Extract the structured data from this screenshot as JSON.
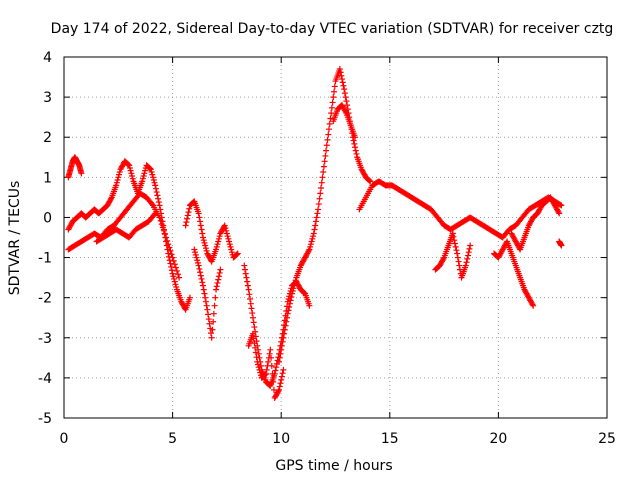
{
  "chart_data": {
    "type": "scatter",
    "title": "Day 174 of 2022, Sidereal Day-to-day VTEC variation (SDTVAR) for receiver cztg",
    "xlabel": "GPS time / hours",
    "ylabel": "SDTVAR / TECUs",
    "xlim": [
      0,
      25
    ],
    "ylim": [
      -5,
      4
    ],
    "xticks": [
      0,
      5,
      10,
      15,
      20,
      25
    ],
    "yticks": [
      -5,
      -4,
      -3,
      -2,
      -1,
      0,
      1,
      2,
      3,
      4
    ],
    "grid": true,
    "marker": "+",
    "series": [
      {
        "name": "SDTVAR",
        "color": "#ff0000",
        "segments": [
          {
            "x": [
              0.2,
              0.3,
              0.4,
              0.5,
              0.6,
              0.7,
              0.8
            ],
            "y": [
              1.0,
              1.2,
              1.4,
              1.5,
              1.4,
              1.3,
              1.1
            ]
          },
          {
            "x": [
              0.2,
              0.4,
              0.6,
              0.8,
              1.0,
              1.2,
              1.4,
              1.6,
              1.8,
              2.0,
              2.2,
              2.4,
              2.6,
              2.8,
              3.0,
              3.2,
              3.4,
              3.6,
              3.8,
              4.0,
              4.2,
              4.4,
              4.6,
              4.8,
              5.0,
              5.2,
              5.4,
              5.6,
              5.8
            ],
            "y": [
              -0.3,
              -0.1,
              0.0,
              0.1,
              0.0,
              0.1,
              0.2,
              0.1,
              0.2,
              0.3,
              0.5,
              0.8,
              1.2,
              1.4,
              1.3,
              0.9,
              0.6,
              0.9,
              1.3,
              1.2,
              0.8,
              0.3,
              -0.3,
              -0.9,
              -1.4,
              -1.8,
              -2.1,
              -2.3,
              -2.0
            ]
          },
          {
            "x": [
              0.2,
              0.5,
              0.8,
              1.1,
              1.4,
              1.7,
              2.0,
              2.3,
              2.6,
              2.9,
              3.2,
              3.5,
              3.8,
              4.1,
              4.4,
              4.7,
              5.0,
              5.3
            ],
            "y": [
              -0.8,
              -0.7,
              -0.6,
              -0.5,
              -0.4,
              -0.5,
              -0.3,
              -0.2,
              0.0,
              0.2,
              0.4,
              0.6,
              0.5,
              0.3,
              0.0,
              -0.5,
              -1.0,
              -1.5
            ]
          },
          {
            "x": [
              1.5,
              1.8,
              2.1,
              2.4,
              2.7,
              3.0,
              3.3,
              3.6,
              3.9,
              4.2
            ],
            "y": [
              -0.6,
              -0.5,
              -0.4,
              -0.3,
              -0.4,
              -0.5,
              -0.3,
              -0.2,
              -0.1,
              0.1
            ]
          },
          {
            "x": [
              5.6,
              5.8,
              6.0,
              6.2,
              6.4,
              6.6,
              6.8,
              7.0,
              7.2,
              7.4,
              7.6,
              7.8,
              8.0
            ],
            "y": [
              -0.2,
              0.3,
              0.4,
              0.1,
              -0.5,
              -0.9,
              -1.1,
              -0.8,
              -0.4,
              -0.2,
              -0.6,
              -1.0,
              -0.9
            ]
          },
          {
            "x": [
              6.0,
              6.2,
              6.4,
              6.6,
              6.8,
              7.0,
              7.2
            ],
            "y": [
              -0.8,
              -1.2,
              -1.7,
              -2.3,
              -3.0,
              -1.8,
              -1.3
            ]
          },
          {
            "x": [
              8.3,
              8.5,
              8.7,
              8.9,
              9.1,
              9.3,
              9.5,
              9.7,
              9.9,
              10.1,
              10.3,
              10.5,
              10.7,
              10.9,
              11.1,
              11.3
            ],
            "y": [
              -1.2,
              -1.8,
              -2.5,
              -3.2,
              -3.8,
              -4.1,
              -4.2,
              -3.9,
              -3.4,
              -2.8,
              -2.1,
              -1.7,
              -1.6,
              -1.8,
              -1.9,
              -2.2
            ]
          },
          {
            "x": [
              8.5,
              8.7,
              8.9,
              9.1,
              9.3,
              9.5,
              9.7,
              9.9,
              10.1
            ],
            "y": [
              -3.2,
              -2.9,
              -3.6,
              -4.0,
              -3.9,
              -3.3,
              -4.5,
              -4.3,
              -3.8
            ]
          },
          {
            "x": [
              9.9,
              10.1,
              10.3,
              10.5,
              10.7,
              10.9,
              11.1,
              11.3,
              11.5,
              11.7,
              11.9,
              12.1,
              12.3,
              12.5,
              12.7,
              12.9,
              13.1,
              13.3,
              13.5,
              13.7,
              13.9,
              14.1
            ],
            "y": [
              -3.6,
              -3.0,
              -2.4,
              -1.9,
              -1.5,
              -1.2,
              -1.0,
              -0.8,
              -0.4,
              0.2,
              1.0,
              1.8,
              2.6,
              3.4,
              3.7,
              3.2,
              2.6,
              2.0,
              1.5,
              1.2,
              1.0,
              0.9
            ]
          },
          {
            "x": [
              12.4,
              12.6,
              12.8,
              13.0,
              13.2,
              13.4
            ],
            "y": [
              2.4,
              2.7,
              2.8,
              2.6,
              2.3,
              2.0
            ]
          },
          {
            "x": [
              13.6,
              13.9,
              14.2,
              14.5,
              14.8,
              15.1,
              15.4,
              15.7,
              16.0,
              16.3,
              16.6,
              16.9,
              17.2,
              17.5,
              17.8,
              18.1,
              18.4,
              18.7,
              19.0,
              19.3,
              19.6,
              19.9,
              20.2,
              20.5,
              20.8,
              21.1,
              21.4,
              21.7,
              22.0,
              22.3,
              22.6,
              22.9
            ],
            "y": [
              0.2,
              0.5,
              0.8,
              0.9,
              0.8,
              0.8,
              0.7,
              0.6,
              0.5,
              0.4,
              0.3,
              0.2,
              0.0,
              -0.2,
              -0.3,
              -0.2,
              -0.1,
              0.0,
              -0.1,
              -0.2,
              -0.3,
              -0.4,
              -0.5,
              -0.3,
              -0.2,
              0.0,
              0.2,
              0.3,
              0.4,
              0.5,
              0.4,
              0.3
            ]
          },
          {
            "x": [
              17.1,
              17.3,
              17.5,
              17.7,
              17.9
            ],
            "y": [
              -1.3,
              -1.2,
              -1.0,
              -0.7,
              -0.4
            ]
          },
          {
            "x": [
              17.9,
              18.1,
              18.3,
              18.5,
              18.7
            ],
            "y": [
              -0.4,
              -0.9,
              -1.5,
              -1.2,
              -0.7
            ]
          },
          {
            "x": [
              19.8,
              20.0,
              20.2,
              20.4,
              20.6,
              20.8,
              21.0,
              21.2,
              21.4,
              21.6
            ],
            "y": [
              -0.9,
              -1.0,
              -0.8,
              -0.6,
              -0.9,
              -1.2,
              -1.5,
              -1.8,
              -2.0,
              -2.2
            ]
          },
          {
            "x": [
              20.6,
              20.8,
              21.0,
              21.2,
              21.4,
              21.6,
              21.8,
              22.0,
              22.2,
              22.4,
              22.6,
              22.8
            ],
            "y": [
              -0.4,
              -0.6,
              -0.8,
              -0.5,
              -0.2,
              0.0,
              0.1,
              0.3,
              0.4,
              0.5,
              0.3,
              0.1
            ]
          },
          {
            "x": [
              22.8,
              22.9
            ],
            "y": [
              -0.6,
              -0.7
            ]
          }
        ]
      }
    ]
  }
}
